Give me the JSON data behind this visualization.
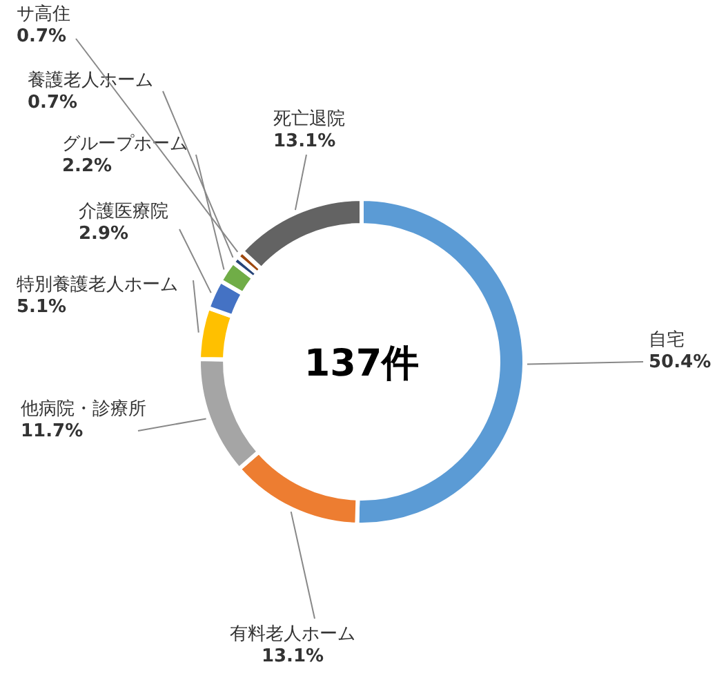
{
  "chart_data": {
    "type": "donut",
    "categories": [
      "自宅",
      "有料老人ホーム",
      "他病院・診療所",
      "特別養護老人ホーム",
      "介護医療院",
      "グループホーム",
      "養護老人ホーム",
      "サ高住",
      "死亡退院"
    ],
    "values": [
      50.4,
      13.1,
      11.7,
      5.1,
      2.9,
      2.2,
      0.7,
      0.7,
      13.1
    ],
    "colors": [
      "#5b9bd5",
      "#ed7d31",
      "#a5a5a5",
      "#ffc000",
      "#4472c4",
      "#70ad47",
      "#264478",
      "#9e480e",
      "#636363"
    ],
    "value_labels": [
      "50.4%",
      "13.1%",
      "11.7%",
      "5.1%",
      "2.9%",
      "2.2%",
      "0.7%",
      "0.7%",
      "13.1%"
    ],
    "annotations": [
      "137件"
    ]
  }
}
